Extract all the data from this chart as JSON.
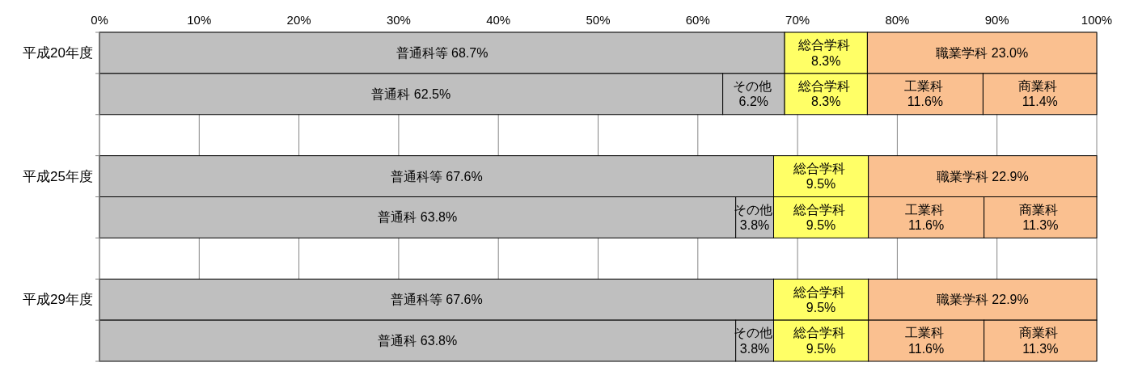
{
  "chart_data": {
    "type": "bar",
    "orientation": "horizontal",
    "stacked": true,
    "categories": [
      "平成20年度",
      null,
      null,
      "平成25年度",
      null,
      null,
      "平成29年度",
      null
    ],
    "series": [
      {
        "color": "#bfbfbf",
        "values": [
          68.7,
          62.5,
          null,
          67.6,
          63.8,
          null,
          67.6,
          63.8
        ],
        "value_labels": [
          "普通科等 68.7%",
          "普通科 62.5%",
          null,
          "普通科等 67.6%",
          "普通科 63.8%",
          null,
          "普通科等 67.6%",
          "普通科 63.8%"
        ]
      },
      {
        "color": "#bfbfbf",
        "values": [
          null,
          6.2,
          null,
          null,
          3.8,
          null,
          null,
          3.8
        ],
        "value_labels": [
          null,
          "その他 6.2%",
          null,
          null,
          "その他 3.8%",
          null,
          null,
          "その他 3.8%"
        ]
      },
      {
        "color": "#ffff66",
        "values": [
          8.3,
          8.3,
          null,
          9.5,
          9.5,
          null,
          9.5,
          9.5
        ],
        "value_labels": [
          "総合学科 8.3%",
          "総合学科 8.3%",
          null,
          "総合学科 9.5%",
          "総合学科 9.5%",
          null,
          "総合学科 9.5%",
          "総合学科 9.5%"
        ]
      },
      {
        "color": "#fac090",
        "values": [
          23.0,
          11.6,
          null,
          22.9,
          11.6,
          null,
          22.9,
          11.6
        ],
        "value_labels": [
          "職業学科 23.0%",
          "工業科 11.6%",
          null,
          "職業学科 22.9%",
          "工業科 11.6%",
          null,
          "職業学科 22.9%",
          "工業科 11.6%"
        ]
      },
      {
        "color": "#fac090",
        "values": [
          null,
          11.4,
          null,
          null,
          11.3,
          null,
          null,
          11.3
        ],
        "value_labels": [
          null,
          "商業科 11.4%",
          null,
          null,
          "商業科 11.3%",
          null,
          null,
          "商業科 11.3%"
        ]
      }
    ],
    "xlim": [
      0,
      100
    ],
    "xticks": [
      {
        "value": 0,
        "label": "0%"
      },
      {
        "value": 10,
        "label": "10%"
      },
      {
        "value": 20,
        "label": "20%"
      },
      {
        "value": 30,
        "label": "30%"
      },
      {
        "value": 40,
        "label": "40%"
      },
      {
        "value": 50,
        "label": "50%"
      },
      {
        "value": 60,
        "label": "60%"
      },
      {
        "value": 70,
        "label": "70%"
      },
      {
        "value": 80,
        "label": "80%"
      },
      {
        "value": 90,
        "label": "90%"
      },
      {
        "value": 100,
        "label": "100%"
      }
    ],
    "grid": "x"
  }
}
